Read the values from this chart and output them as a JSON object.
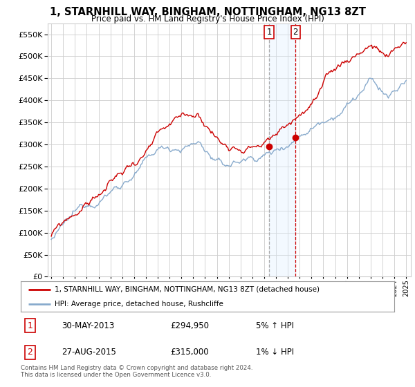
{
  "title": "1, STARNHILL WAY, BINGHAM, NOTTINGHAM, NG13 8ZT",
  "subtitle": "Price paid vs. HM Land Registry's House Price Index (HPI)",
  "ylabel_ticks": [
    0,
    50000,
    100000,
    150000,
    200000,
    250000,
    300000,
    350000,
    400000,
    450000,
    500000,
    550000
  ],
  "ylim": [
    0,
    575000
  ],
  "xlim_start": 1994.7,
  "xlim_end": 2025.4,
  "point1": {
    "date_num": 2013.41,
    "value": 294950,
    "label": "1",
    "info": "30-MAY-2013",
    "price": "£294,950",
    "pct": "5% ↑ HPI"
  },
  "point2": {
    "date_num": 2015.65,
    "value": 315000,
    "label": "2",
    "info": "27-AUG-2015",
    "price": "£315,000",
    "pct": "1% ↓ HPI"
  },
  "legend_line1": "1, STARNHILL WAY, BINGHAM, NOTTINGHAM, NG13 8ZT (detached house)",
  "legend_line2": "HPI: Average price, detached house, Rushcliffe",
  "footnote": "Contains HM Land Registry data © Crown copyright and database right 2024.\nThis data is licensed under the Open Government Licence v3.0.",
  "red_color": "#cc0000",
  "blue_color": "#88aacc",
  "bg_color": "#ffffff",
  "grid_color": "#cccccc",
  "shade_color": "#ddeeff",
  "hpi_seed": 12345,
  "red_seed": 99
}
